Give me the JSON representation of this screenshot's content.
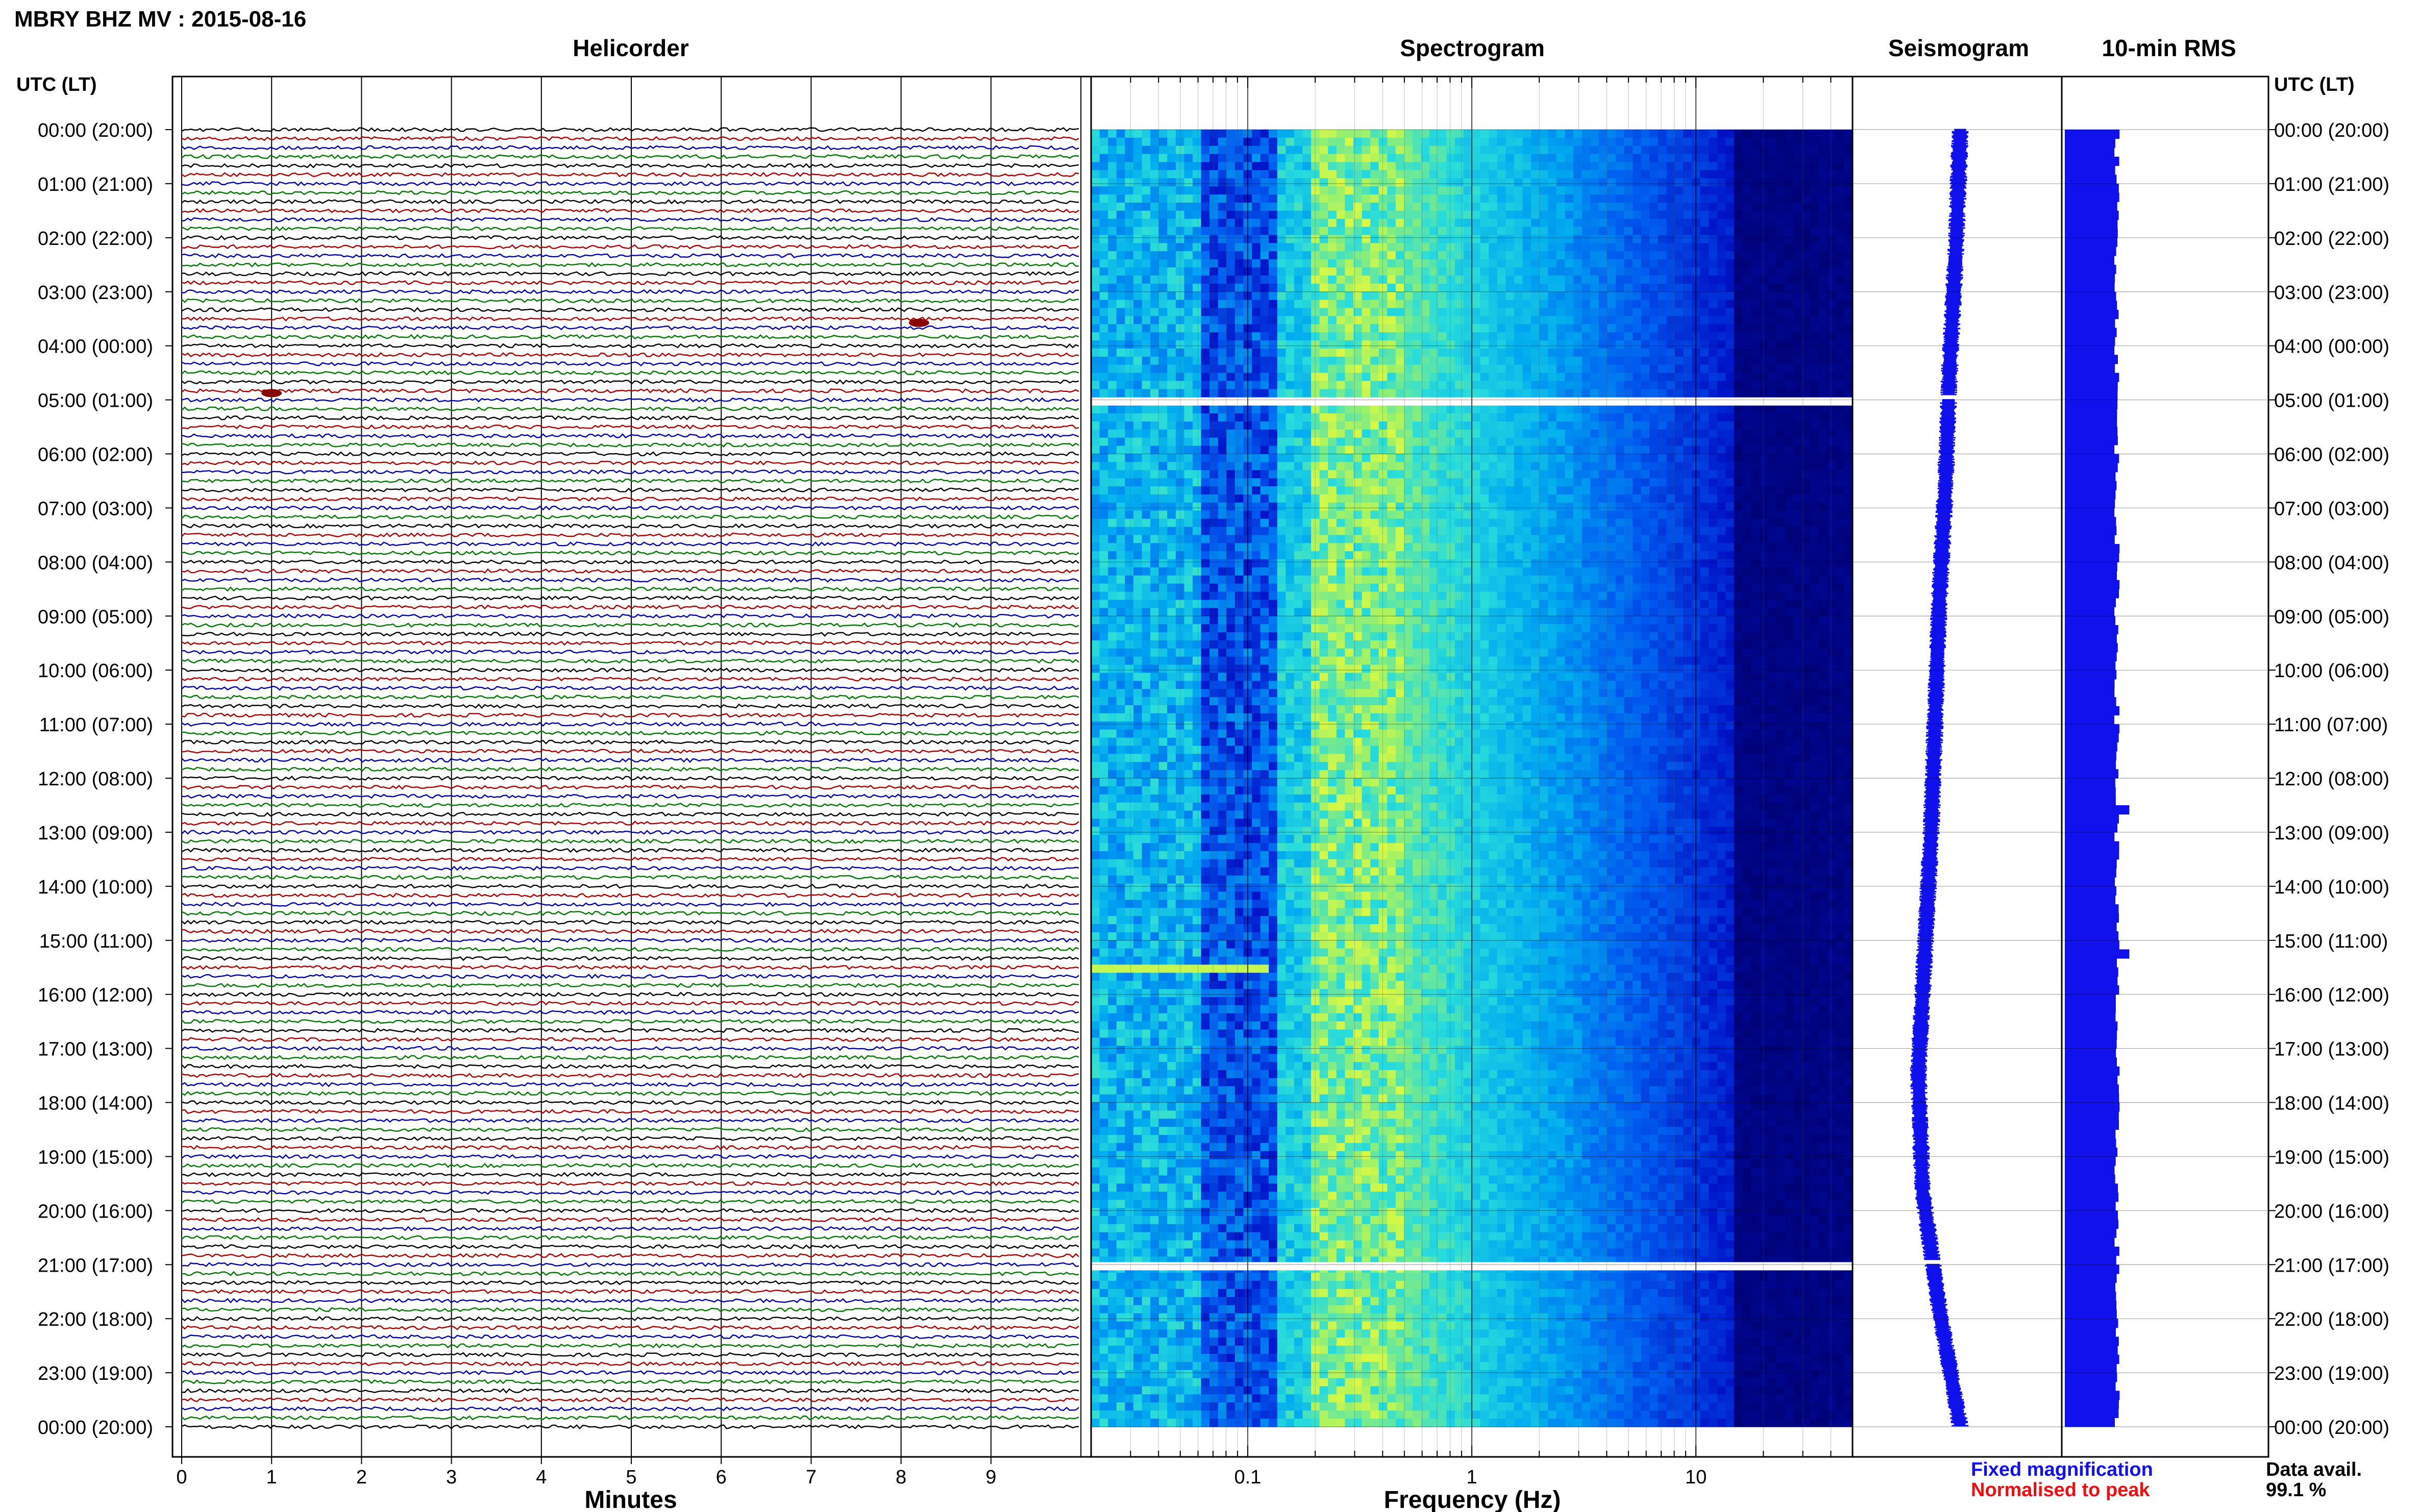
{
  "title": "MBRY BHZ MV : 2015-08-16",
  "panels": {
    "helicorder": "Helicorder",
    "spectrogram": "Spectrogram",
    "seismogram": "Seismogram",
    "rms": "10-min RMS"
  },
  "time_axis_label": "UTC (LT)",
  "time_labels": [
    "00:00 (20:00)",
    "01:00 (21:00)",
    "02:00 (22:00)",
    "03:00 (23:00)",
    "04:00 (00:00)",
    "05:00 (01:00)",
    "06:00 (02:00)",
    "07:00 (03:00)",
    "08:00 (04:00)",
    "09:00 (05:00)",
    "10:00 (06:00)",
    "11:00 (07:00)",
    "12:00 (08:00)",
    "13:00 (09:00)",
    "14:00 (10:00)",
    "15:00 (11:00)",
    "16:00 (12:00)",
    "17:00 (13:00)",
    "18:00 (14:00)",
    "19:00 (15:00)",
    "20:00 (16:00)",
    "21:00 (17:00)",
    "22:00 (18:00)",
    "23:00 (19:00)",
    "00:00 (20:00)"
  ],
  "helicorder_axis": {
    "xlabel": "Minutes",
    "ticks": [
      "0",
      "1",
      "2",
      "3",
      "4",
      "5",
      "6",
      "7",
      "8",
      "9"
    ]
  },
  "spectrogram_axis": {
    "xlabel": "Frequency (Hz)",
    "ticks": [
      "0.1",
      "1",
      "10"
    ]
  },
  "legend": {
    "fixed": "Fixed magnification",
    "normalised": "Normalised to peak",
    "fixed_color": "#1010ee",
    "normalised_color": "#ee1010"
  },
  "data_avail": {
    "label": "Data avail.",
    "value": "99.1 %"
  },
  "colors": {
    "trace_cycle": [
      "#000000",
      "#aa0000",
      "#0000aa",
      "#007700"
    ],
    "rms_bar": "#1111ee",
    "spectrogram_dark": "#00006e"
  },
  "chart_data": [
    {
      "type": "line",
      "name": "helicorder",
      "xlabel": "Minutes",
      "x_range": [
        0,
        10
      ],
      "y_range_utc_hours": [
        0,
        24
      ],
      "rows_per_hour": 6,
      "data_gaps_utc": [
        "04:55-05:00",
        "20:55-21:00"
      ],
      "events": [
        {
          "utc_hour": 3.5,
          "minute": 8.2
        },
        {
          "utc_hour": 4.8,
          "minute": 1.0
        }
      ]
    },
    {
      "type": "heatmap",
      "name": "spectrogram",
      "xlabel": "Frequency (Hz)",
      "x_scale": "log",
      "x_range_hz": [
        0.02,
        50
      ],
      "y_range_utc_hours": [
        0,
        24
      ],
      "peak_band_hz": [
        0.2,
        0.5
      ],
      "strong_low_frequency_utc_hour": 15.5
    },
    {
      "type": "line",
      "name": "seismogram",
      "y_range_utc_hours": [
        0,
        24
      ],
      "drift_offset": [
        0.0,
        -0.02,
        -0.05,
        -0.07,
        -0.1,
        -0.12,
        -0.14,
        -0.17,
        -0.2,
        -0.18,
        -0.1,
        0.0
      ]
    },
    {
      "type": "bar",
      "name": "10-min RMS",
      "y_range_utc_hours": [
        0,
        24
      ],
      "relative_level": 0.26,
      "notable_peaks_utc_hours": [
        12.6,
        15.3
      ]
    }
  ]
}
